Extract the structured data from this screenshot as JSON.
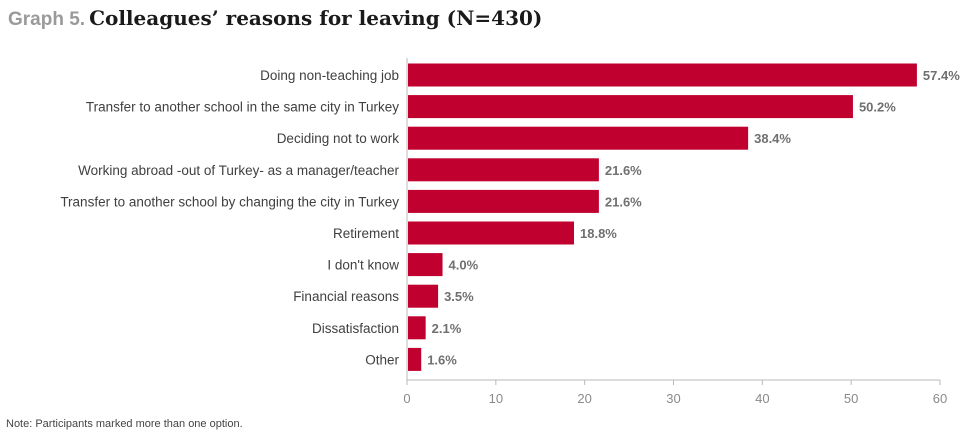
{
  "header": {
    "graph_label": "Graph 5.",
    "title": "Colleagues’ reasons for leaving (N=430)"
  },
  "note": "Note: Participants marked more than one option.",
  "colors": {
    "bar": "#c0002e",
    "label_text": "#404040",
    "value_text": "#707070",
    "axis": "#b8b8b8",
    "tick_text": "#8a8a8a"
  },
  "chart_data": {
    "type": "bar",
    "orientation": "horizontal",
    "categories": [
      "Doing non-teaching job",
      "Transfer to another school in the same city in Turkey",
      "Deciding not to work",
      "Working abroad -out of Turkey- as a manager/teacher",
      "Transfer to another school by changing the city in Turkey",
      "Retirement",
      "I don't know",
      "Financial reasons",
      "Dissatisfaction",
      "Other"
    ],
    "values": [
      57.4,
      50.2,
      38.4,
      21.6,
      21.6,
      18.8,
      4.0,
      3.5,
      2.1,
      1.6
    ],
    "value_labels": [
      "57.4%",
      "50.2%",
      "38.4%",
      "21.6%",
      "21.6%",
      "18.8%",
      "4.0%",
      "3.5%",
      "2.1%",
      "1.6%"
    ],
    "xticks": [
      0,
      10,
      20,
      30,
      40,
      50,
      60
    ],
    "xlim": [
      0,
      60
    ],
    "grid": false,
    "legend": "none"
  }
}
